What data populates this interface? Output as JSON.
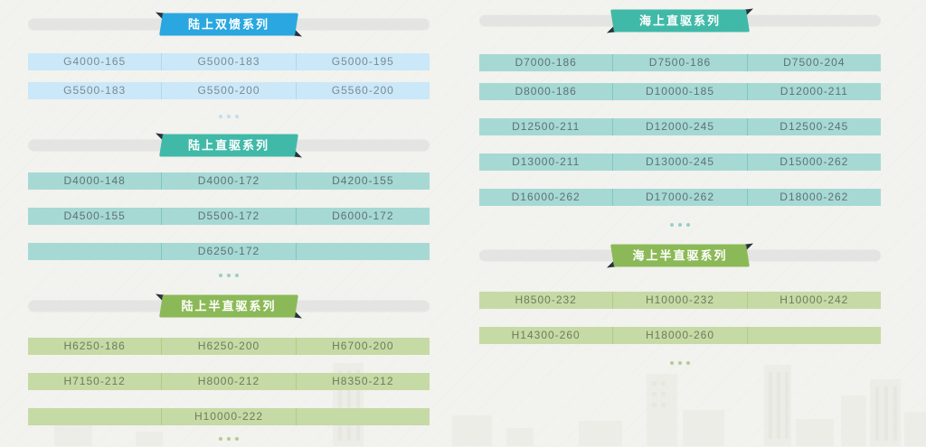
{
  "palette": {
    "background": "#f2f2ee",
    "header_bar": "#e4e4e2",
    "ribbon_fold": "#28323c",
    "skyline": "#e9e9e4"
  },
  "columns": [
    {
      "side": "left",
      "sections": [
        {
          "title": "陆上双馈系列",
          "colors": {
            "banner": "#2aa7e0",
            "cell": "#cae8f8",
            "separator": "#aed7ee",
            "text": "#7b8a94",
            "dot": "#c2dcec"
          },
          "rows": [
            [
              "G4000-165",
              "G5000-183",
              "G5000-195"
            ],
            [
              "G5500-183",
              "G5500-200",
              "G5560-200"
            ]
          ],
          "more": true
        },
        {
          "title": "陆上直驱系列",
          "colors": {
            "banner": "#41b9a8",
            "cell": "#a6d9d4",
            "separator": "#7fc7bf",
            "text": "#5f7076",
            "dot": "#97cec7"
          },
          "rows": [
            [
              "D4000-148",
              "D4000-172",
              "D4200-155"
            ],
            [
              "D4500-155",
              "D5500-172",
              "D6000-172"
            ],
            [
              "",
              "D6250-172",
              ""
            ]
          ],
          "more": true
        },
        {
          "title": "陆上半直驱系列",
          "colors": {
            "banner": "#8cb957",
            "cell": "#c6daa5",
            "separator": "#b1cd85",
            "text": "#6e7b5e",
            "dot": "#b5cc90"
          },
          "rows": [
            [
              "H6250-186",
              "H6250-200",
              "H6700-200"
            ],
            [
              "H7150-212",
              "H8000-212",
              "H8350-212"
            ],
            [
              "",
              "H10000-222",
              ""
            ]
          ],
          "more": true
        }
      ]
    },
    {
      "side": "right",
      "sections": [
        {
          "title": "海上直驱系列",
          "colors": {
            "banner": "#41b9a8",
            "cell": "#a6d9d4",
            "separator": "#7fc7bf",
            "text": "#5f7076",
            "dot": "#97cec7"
          },
          "rows": [
            [
              "D7000-186",
              "D7500-186",
              "D7500-204"
            ],
            [
              "D8000-186",
              "D10000-185",
              "D12000-211"
            ],
            [
              "D12500-211",
              "D12000-245",
              "D12500-245"
            ],
            [
              "D13000-211",
              "D13000-245",
              "D15000-262"
            ],
            [
              "D16000-262",
              "D17000-262",
              "D18000-262"
            ]
          ],
          "more": true
        },
        {
          "title": "海上半直驱系列",
          "colors": {
            "banner": "#8cb957",
            "cell": "#c6daa5",
            "separator": "#b1cd85",
            "text": "#6e7b5e",
            "dot": "#b5cc90"
          },
          "rows": [
            [
              "H8500-232",
              "H10000-232",
              "H10000-242"
            ],
            [
              "H14300-260",
              "H18000-260",
              ""
            ]
          ],
          "more": true
        }
      ]
    }
  ]
}
